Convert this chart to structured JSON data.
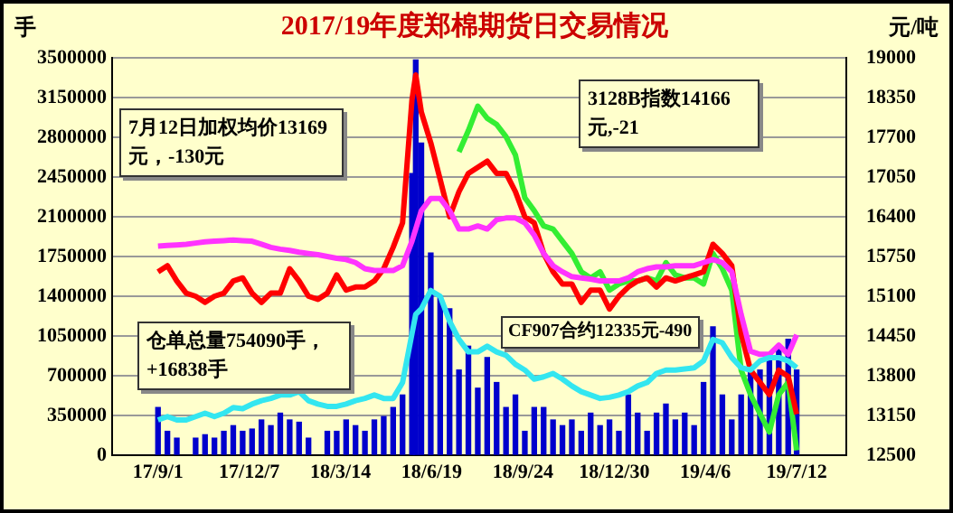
{
  "chart_data": {
    "type": "bar",
    "title": "2017/19年度郑棉期货日交易情况",
    "ylabel": "手",
    "y2label": "元/吨",
    "x": [
      "2017-09-01",
      "2017-09-11",
      "2017-09-21",
      "2017-10-01",
      "2017-10-11",
      "2017-10-21",
      "2017-10-31",
      "2017-11-10",
      "2017-11-20",
      "2017-11-30",
      "2017-12-10",
      "2017-12-20",
      "2017-12-30",
      "2018-01-09",
      "2018-01-19",
      "2018-01-29",
      "2018-02-08",
      "2018-02-18",
      "2018-02-28",
      "2018-03-10",
      "2018-03-20",
      "2018-03-30",
      "2018-04-09",
      "2018-04-19",
      "2018-04-29",
      "2018-05-09",
      "2018-05-19",
      "2018-05-29",
      "2018-06-02",
      "2018-06-08",
      "2018-06-18",
      "2018-06-28",
      "2018-07-08",
      "2018-07-18",
      "2018-07-28",
      "2018-08-07",
      "2018-08-17",
      "2018-08-27",
      "2018-09-06",
      "2018-09-16",
      "2018-09-26",
      "2018-10-06",
      "2018-10-16",
      "2018-10-26",
      "2018-11-05",
      "2018-11-15",
      "2018-11-25",
      "2018-12-05",
      "2018-12-15",
      "2018-12-25",
      "2019-01-04",
      "2019-01-14",
      "2019-01-24",
      "2019-02-03",
      "2019-02-13",
      "2019-02-23",
      "2019-03-05",
      "2019-03-15",
      "2019-03-25",
      "2019-04-04",
      "2019-04-14",
      "2019-04-24",
      "2019-05-04",
      "2019-05-14",
      "2019-05-24",
      "2019-06-03",
      "2019-06-13",
      "2019-06-23",
      "2019-07-03",
      "2019-07-12"
    ],
    "series": [
      {
        "color": "#0000cc",
        "values": [
          420000,
          210000,
          150000,
          null,
          150000,
          180000,
          150000,
          210000,
          260000,
          210000,
          230000,
          310000,
          260000,
          370000,
          310000,
          290000,
          150000,
          null,
          210000,
          210000,
          310000,
          260000,
          210000,
          310000,
          340000,
          420000,
          530000,
          2480000,
          3480000,
          2750000,
          1780000,
          1400000,
          1290000,
          750000,
          960000,
          590000,
          860000,
          640000,
          420000,
          530000,
          210000,
          420000,
          420000,
          310000,
          260000,
          310000,
          210000,
          370000,
          260000,
          310000,
          210000,
          530000,
          370000,
          210000,
          370000,
          450000,
          310000,
          370000,
          260000,
          640000,
          1130000,
          530000,
          310000,
          530000,
          750000,
          750000,
          860000,
          960000,
          1020000,
          750000
        ]
      },
      {
        "type": "line",
        "color": "#33e6f0",
        "values": [
          310000,
          340000,
          310000,
          310000,
          340000,
          370000,
          340000,
          370000,
          420000,
          410000,
          450000,
          480000,
          500000,
          530000,
          530000,
          560000,
          480000,
          450000,
          430000,
          430000,
          450000,
          480000,
          500000,
          530000,
          500000,
          500000,
          640000,
          1070000,
          1240000,
          1290000,
          1450000,
          1400000,
          1180000,
          1020000,
          910000,
          910000,
          960000,
          910000,
          880000,
          800000,
          750000,
          670000,
          690000,
          720000,
          670000,
          610000,
          560000,
          530000,
          500000,
          510000,
          530000,
          560000,
          610000,
          640000,
          720000,
          750000,
          750000,
          760000,
          770000,
          830000,
          1020000,
          990000,
          860000,
          770000,
          750000,
          830000,
          860000,
          860000,
          830000,
          770000
        ]
      },
      {
        "type": "line",
        "axis": "y2",
        "color": "#ff33ff",
        "values": [
          15920,
          15930,
          15940,
          15950,
          15970,
          15990,
          16000,
          16010,
          16020,
          16010,
          16000,
          15950,
          15900,
          15870,
          15850,
          15820,
          15800,
          15780,
          15750,
          15720,
          15700,
          15650,
          15550,
          15520,
          15520,
          15520,
          15600,
          16000,
          16200,
          16500,
          16700,
          16700,
          16500,
          16200,
          16200,
          16250,
          16200,
          16350,
          16380,
          16380,
          16300,
          16100,
          15800,
          15600,
          15500,
          15420,
          15400,
          15380,
          15350,
          15350,
          15350,
          15400,
          15500,
          15550,
          15580,
          15580,
          15600,
          15600,
          15600,
          15650,
          15700,
          15650,
          15500,
          14800,
          14200,
          14150,
          14150,
          14300,
          14150,
          14470
        ]
      },
      {
        "type": "line",
        "axis": "y2",
        "color": "#ff0000",
        "values": [
          15500,
          15600,
          15350,
          15150,
          15100,
          15000,
          15100,
          15150,
          15350,
          15400,
          15150,
          15000,
          15150,
          15150,
          15550,
          15350,
          15100,
          15050,
          15150,
          15450,
          15200,
          15250,
          15250,
          15350,
          15550,
          15900,
          16300,
          18310,
          18720,
          18110,
          17610,
          17010,
          16400,
          16810,
          17110,
          17210,
          17310,
          17110,
          17110,
          16810,
          16400,
          16300,
          15800,
          15500,
          15300,
          15300,
          15000,
          15200,
          15200,
          14890,
          15100,
          15250,
          15350,
          15400,
          15250,
          15400,
          15350,
          15400,
          15450,
          15500,
          15950,
          15800,
          15600,
          14490,
          13890,
          13690,
          13490,
          13890,
          13790,
          13170
        ]
      },
      {
        "type": "line",
        "axis": "y2",
        "color": "#33ee33",
        "values": [
          null,
          null,
          null,
          null,
          null,
          null,
          null,
          null,
          null,
          null,
          null,
          null,
          null,
          null,
          null,
          null,
          null,
          null,
          null,
          null,
          null,
          null,
          null,
          null,
          null,
          null,
          null,
          null,
          null,
          null,
          null,
          null,
          null,
          17460,
          17810,
          18210,
          18010,
          17910,
          17710,
          17410,
          16710,
          16500,
          16250,
          16200,
          16000,
          15800,
          15500,
          15400,
          15500,
          15200,
          15300,
          15350,
          15350,
          15400,
          15350,
          15650,
          15450,
          15400,
          15400,
          15300,
          15800,
          15550,
          15200,
          13890,
          13490,
          13180,
          12880,
          13490,
          13690,
          12580
        ]
      }
    ],
    "xlim": [
      "2017-09-01",
      "2019-07-16"
    ],
    "xticks": [
      {
        "value": "2017-09-01",
        "label": "17/9/1"
      },
      {
        "value": "2017-12-07",
        "label": "17/12/7"
      },
      {
        "value": "2018-03-14",
        "label": "18/3/14"
      },
      {
        "value": "2018-06-19",
        "label": "18/6/19"
      },
      {
        "value": "2018-09-24",
        "label": "18/9/24"
      },
      {
        "value": "2018-12-30",
        "label": "18/12/30"
      },
      {
        "value": "2019-04-06",
        "label": "19/4/6"
      },
      {
        "value": "2019-07-12",
        "label": "19/7/12"
      }
    ],
    "ylim": [
      0,
      3500000
    ],
    "yticks": [
      0,
      350000,
      700000,
      1050000,
      1400000,
      1750000,
      2100000,
      2450000,
      2800000,
      3150000,
      3500000
    ],
    "y2lim": [
      12500,
      19000
    ],
    "y2ticks": [
      12500,
      13150,
      13800,
      14450,
      15100,
      15750,
      16400,
      17050,
      17700,
      18350,
      19000
    ],
    "grid": "y",
    "annotations": [
      "7月12日加权均价13169元，-130元",
      "3128B指数14166元,-21",
      "仓单总量754090手，+16838手",
      "CF907合约12335元-490"
    ]
  }
}
